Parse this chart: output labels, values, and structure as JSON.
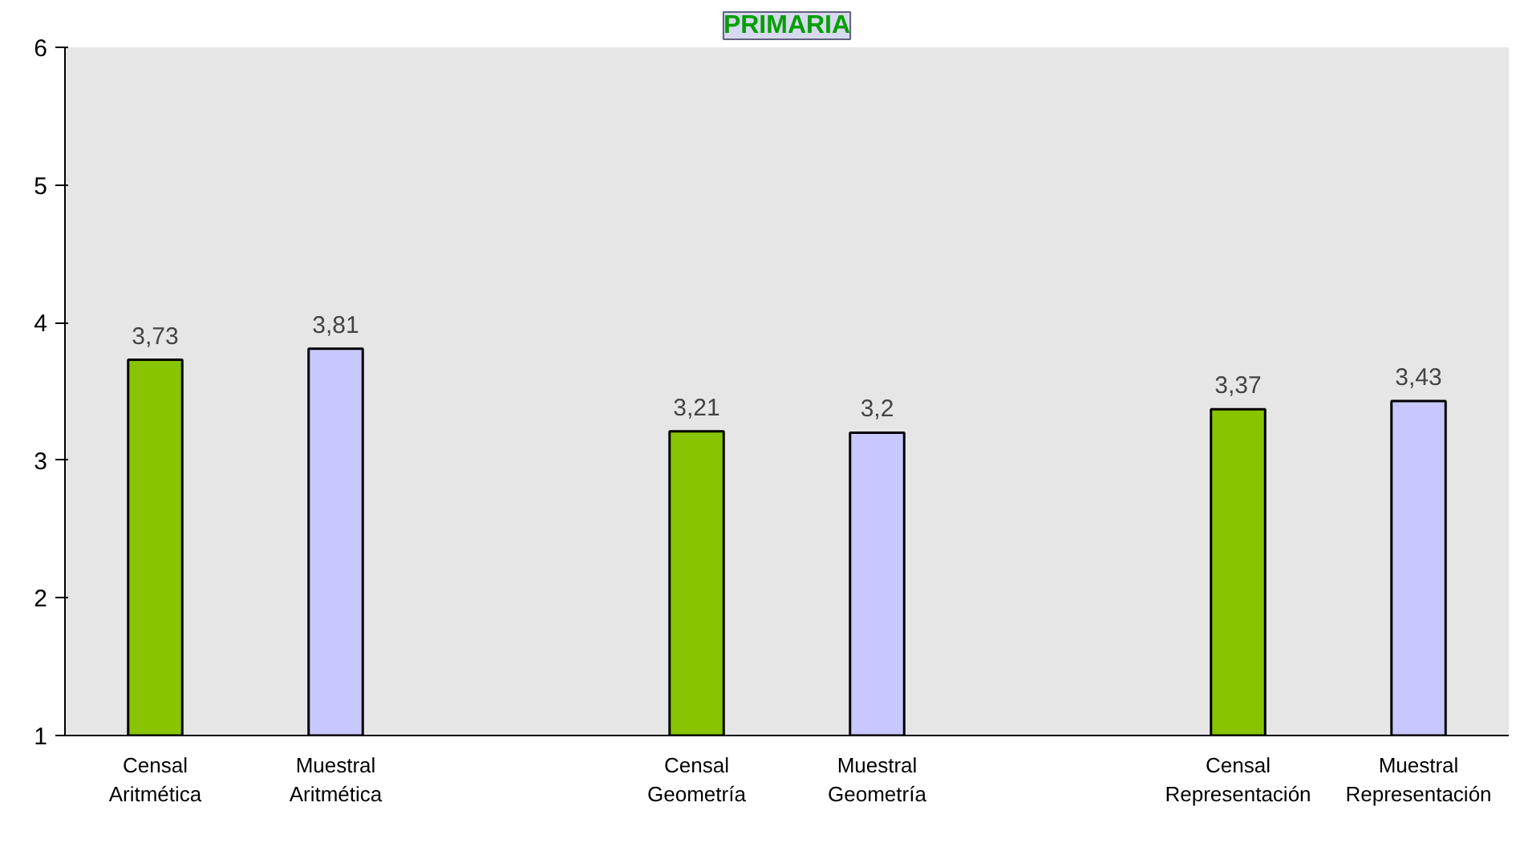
{
  "chart_data": {
    "type": "bar",
    "title": "PRIMARIA",
    "categories": [
      "Censal\nAritmética",
      "Muestral\nAritmética",
      null,
      "Censal\nGeometría",
      "Muestral\nGeometría",
      null,
      "Censal\nRepresentación",
      "Muestral\nRepresentación"
    ],
    "values": [
      3.73,
      3.81,
      null,
      3.21,
      3.2,
      null,
      3.37,
      3.43
    ],
    "colors": [
      "#88c400",
      "#c8c8ff",
      "#ffffff",
      "#88c400",
      "#c8c8ff",
      "#ffffff",
      "#88c400",
      "#c8c8ff"
    ],
    "value_labels": [
      "3,73",
      "3,81",
      null,
      "3,21",
      "3,2",
      null,
      "3,37",
      "3,43"
    ],
    "ylim": [
      1,
      6
    ],
    "yticks": [
      1,
      2,
      3,
      4,
      5,
      6
    ]
  }
}
